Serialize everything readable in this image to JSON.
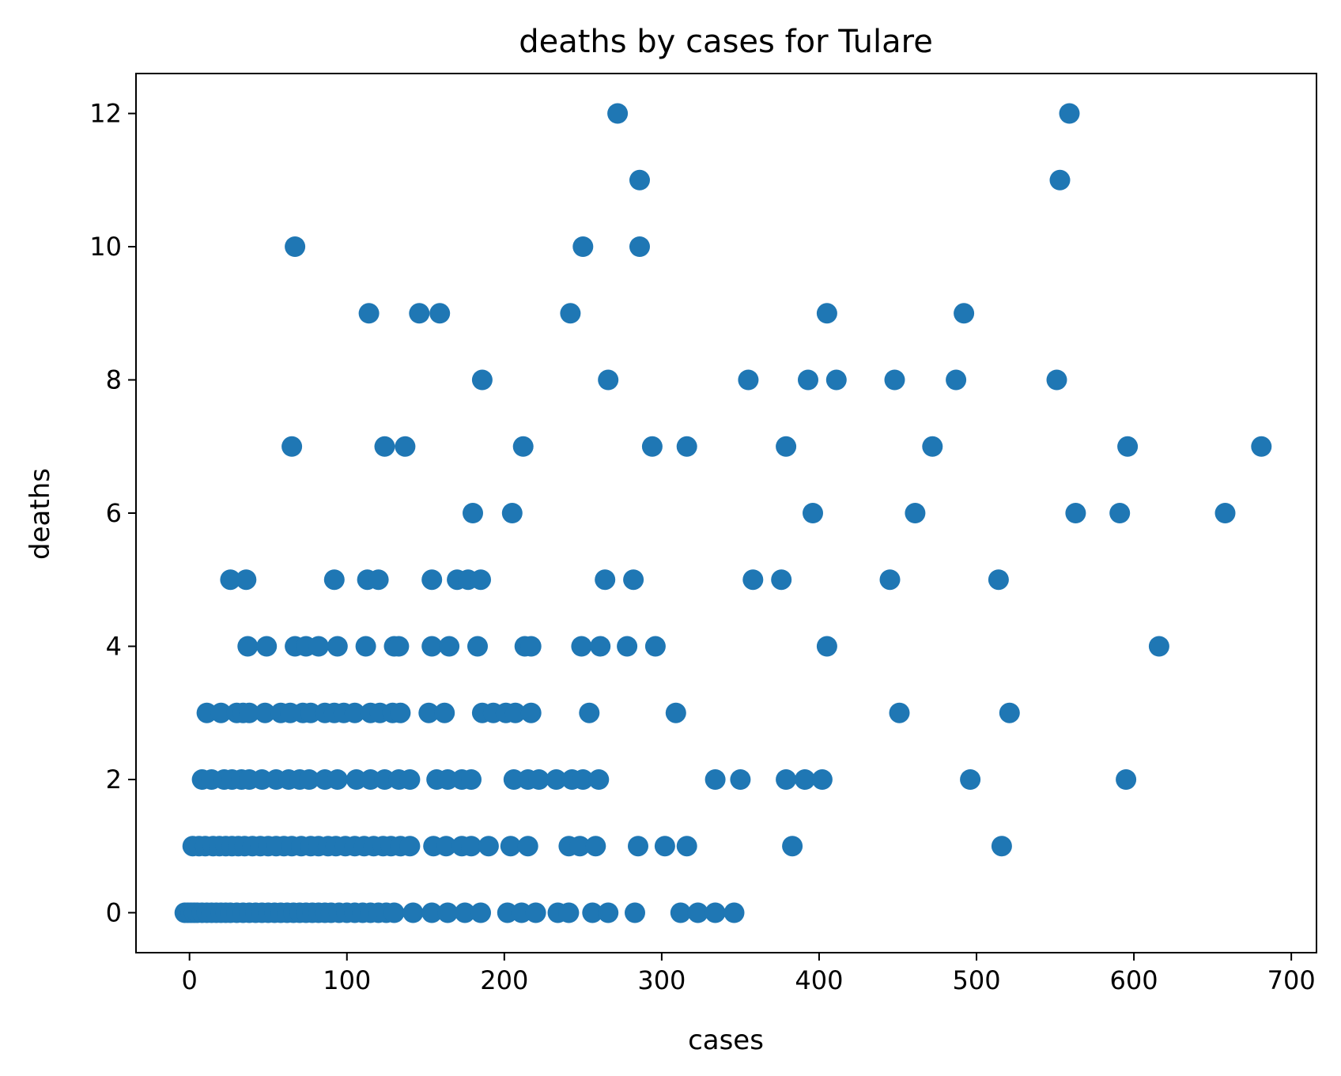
{
  "chart_data": {
    "type": "scatter",
    "title": "deaths by cases for Tulare",
    "xlabel": "cases",
    "ylabel": "deaths",
    "xlim": [
      -34,
      716
    ],
    "ylim": [
      -0.6,
      12.6
    ],
    "xticks": [
      0,
      100,
      200,
      300,
      400,
      500,
      600,
      700
    ],
    "yticks": [
      0,
      2,
      4,
      6,
      8,
      10,
      12
    ],
    "grid": false,
    "legend": "none",
    "marker_color": "#1f77b4",
    "series": [
      {
        "points": [
          [
            67,
            10
          ],
          [
            272,
            12
          ],
          [
            286,
            11
          ],
          [
            250,
            10
          ],
          [
            286,
            10
          ],
          [
            559,
            12
          ],
          [
            553,
            11
          ],
          [
            114,
            9
          ],
          [
            146,
            9
          ],
          [
            159,
            9
          ],
          [
            242,
            9
          ],
          [
            405,
            9
          ],
          [
            492,
            9
          ],
          [
            186,
            8
          ],
          [
            266,
            8
          ],
          [
            355,
            8
          ],
          [
            393,
            8
          ],
          [
            411,
            8
          ],
          [
            448,
            8
          ],
          [
            487,
            8
          ],
          [
            551,
            8
          ],
          [
            65,
            7
          ],
          [
            124,
            7
          ],
          [
            137,
            7
          ],
          [
            212,
            7
          ],
          [
            294,
            7
          ],
          [
            316,
            7
          ],
          [
            379,
            7
          ],
          [
            472,
            7
          ],
          [
            596,
            7
          ],
          [
            681,
            7
          ],
          [
            180,
            6
          ],
          [
            205,
            6
          ],
          [
            396,
            6
          ],
          [
            461,
            6
          ],
          [
            563,
            6
          ],
          [
            591,
            6
          ],
          [
            658,
            6
          ],
          [
            26,
            5
          ],
          [
            36,
            5
          ],
          [
            92,
            5
          ],
          [
            113,
            5
          ],
          [
            120,
            5
          ],
          [
            154,
            5
          ],
          [
            170,
            5
          ],
          [
            177,
            5
          ],
          [
            185,
            5
          ],
          [
            264,
            5
          ],
          [
            282,
            5
          ],
          [
            358,
            5
          ],
          [
            376,
            5
          ],
          [
            445,
            5
          ],
          [
            514,
            5
          ],
          [
            37,
            4
          ],
          [
            49,
            4
          ],
          [
            67,
            4
          ],
          [
            74,
            4
          ],
          [
            82,
            4
          ],
          [
            94,
            4
          ],
          [
            112,
            4
          ],
          [
            130,
            4
          ],
          [
            133,
            4
          ],
          [
            154,
            4
          ],
          [
            165,
            4
          ],
          [
            183,
            4
          ],
          [
            213,
            4
          ],
          [
            217,
            4
          ],
          [
            249,
            4
          ],
          [
            261,
            4
          ],
          [
            278,
            4
          ],
          [
            296,
            4
          ],
          [
            405,
            4
          ],
          [
            616,
            4
          ],
          [
            11,
            3
          ],
          [
            20,
            3
          ],
          [
            30,
            3
          ],
          [
            34,
            3
          ],
          [
            38,
            3
          ],
          [
            48,
            3
          ],
          [
            58,
            3
          ],
          [
            64,
            3
          ],
          [
            72,
            3
          ],
          [
            77,
            3
          ],
          [
            86,
            3
          ],
          [
            92,
            3
          ],
          [
            98,
            3
          ],
          [
            105,
            3
          ],
          [
            115,
            3
          ],
          [
            121,
            3
          ],
          [
            129,
            3
          ],
          [
            134,
            3
          ],
          [
            152,
            3
          ],
          [
            162,
            3
          ],
          [
            186,
            3
          ],
          [
            193,
            3
          ],
          [
            201,
            3
          ],
          [
            207,
            3
          ],
          [
            217,
            3
          ],
          [
            254,
            3
          ],
          [
            309,
            3
          ],
          [
            451,
            3
          ],
          [
            521,
            3
          ],
          [
            8,
            2
          ],
          [
            14,
            2
          ],
          [
            22,
            2
          ],
          [
            27,
            2
          ],
          [
            33,
            2
          ],
          [
            38,
            2
          ],
          [
            46,
            2
          ],
          [
            55,
            2
          ],
          [
            63,
            2
          ],
          [
            70,
            2
          ],
          [
            76,
            2
          ],
          [
            86,
            2
          ],
          [
            94,
            2
          ],
          [
            106,
            2
          ],
          [
            115,
            2
          ],
          [
            124,
            2
          ],
          [
            133,
            2
          ],
          [
            140,
            2
          ],
          [
            157,
            2
          ],
          [
            164,
            2
          ],
          [
            173,
            2
          ],
          [
            179,
            2
          ],
          [
            206,
            2
          ],
          [
            215,
            2
          ],
          [
            222,
            2
          ],
          [
            233,
            2
          ],
          [
            243,
            2
          ],
          [
            250,
            2
          ],
          [
            260,
            2
          ],
          [
            334,
            2
          ],
          [
            350,
            2
          ],
          [
            379,
            2
          ],
          [
            391,
            2
          ],
          [
            402,
            2
          ],
          [
            496,
            2
          ],
          [
            595,
            2
          ],
          [
            2,
            1
          ],
          [
            6,
            1
          ],
          [
            10,
            1
          ],
          [
            15,
            1
          ],
          [
            19,
            1
          ],
          [
            23,
            1
          ],
          [
            27,
            1
          ],
          [
            31,
            1
          ],
          [
            35,
            1
          ],
          [
            40,
            1
          ],
          [
            45,
            1
          ],
          [
            50,
            1
          ],
          [
            55,
            1
          ],
          [
            60,
            1
          ],
          [
            65,
            1
          ],
          [
            71,
            1
          ],
          [
            77,
            1
          ],
          [
            82,
            1
          ],
          [
            88,
            1
          ],
          [
            93,
            1
          ],
          [
            99,
            1
          ],
          [
            105,
            1
          ],
          [
            111,
            1
          ],
          [
            117,
            1
          ],
          [
            123,
            1
          ],
          [
            128,
            1
          ],
          [
            134,
            1
          ],
          [
            140,
            1
          ],
          [
            155,
            1
          ],
          [
            163,
            1
          ],
          [
            173,
            1
          ],
          [
            179,
            1
          ],
          [
            190,
            1
          ],
          [
            204,
            1
          ],
          [
            215,
            1
          ],
          [
            241,
            1
          ],
          [
            248,
            1
          ],
          [
            258,
            1
          ],
          [
            285,
            1
          ],
          [
            302,
            1
          ],
          [
            316,
            1
          ],
          [
            383,
            1
          ],
          [
            516,
            1
          ],
          [
            -3,
            0
          ],
          [
            -1,
            0
          ],
          [
            1,
            0
          ],
          [
            3,
            0
          ],
          [
            5,
            0
          ],
          [
            8,
            0
          ],
          [
            11,
            0
          ],
          [
            14,
            0
          ],
          [
            17,
            0
          ],
          [
            20,
            0
          ],
          [
            23,
            0
          ],
          [
            26,
            0
          ],
          [
            30,
            0
          ],
          [
            34,
            0
          ],
          [
            38,
            0
          ],
          [
            42,
            0
          ],
          [
            46,
            0
          ],
          [
            50,
            0
          ],
          [
            54,
            0
          ],
          [
            58,
            0
          ],
          [
            62,
            0
          ],
          [
            66,
            0
          ],
          [
            70,
            0
          ],
          [
            74,
            0
          ],
          [
            78,
            0
          ],
          [
            82,
            0
          ],
          [
            86,
            0
          ],
          [
            90,
            0
          ],
          [
            95,
            0
          ],
          [
            100,
            0
          ],
          [
            105,
            0
          ],
          [
            110,
            0
          ],
          [
            115,
            0
          ],
          [
            120,
            0
          ],
          [
            125,
            0
          ],
          [
            130,
            0
          ],
          [
            142,
            0
          ],
          [
            154,
            0
          ],
          [
            164,
            0
          ],
          [
            175,
            0
          ],
          [
            185,
            0
          ],
          [
            202,
            0
          ],
          [
            211,
            0
          ],
          [
            220,
            0
          ],
          [
            234,
            0
          ],
          [
            241,
            0
          ],
          [
            256,
            0
          ],
          [
            266,
            0
          ],
          [
            283,
            0
          ],
          [
            312,
            0
          ],
          [
            323,
            0
          ],
          [
            334,
            0
          ],
          [
            346,
            0
          ]
        ]
      }
    ]
  }
}
